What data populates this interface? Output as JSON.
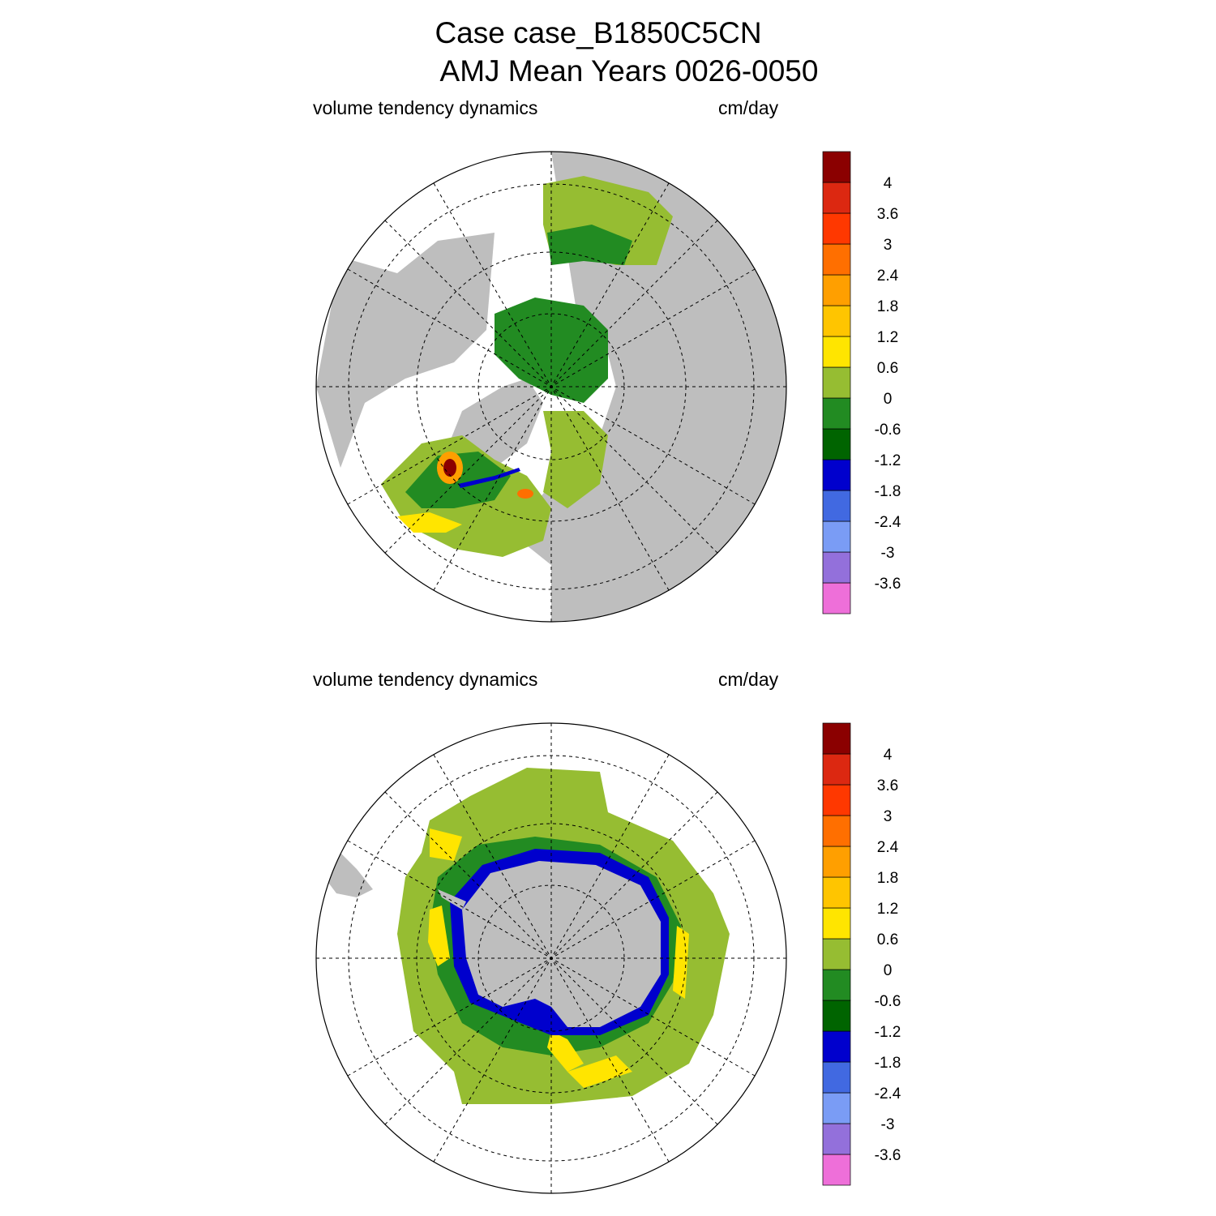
{
  "title": {
    "line1": "Case case_B1850C5CN",
    "line2": "AMJ Mean   Years 0026-0050"
  },
  "panels": [
    {
      "left_label": "volume tendency dynamics",
      "right_label": "cm/day",
      "hemisphere": "north"
    },
    {
      "left_label": "volume tendency dynamics",
      "right_label": "cm/day",
      "hemisphere": "south"
    }
  ],
  "colorbar": {
    "colors": [
      "#ee6fd9",
      "#9370db",
      "#7a9cf5",
      "#4169e1",
      "#0000cd",
      "#006400",
      "#228b22",
      "#96bd32",
      "#ffe500",
      "#ffc500",
      "#ff9f00",
      "#ff6f00",
      "#ff3800",
      "#dc2811",
      "#8b0000"
    ],
    "labels": [
      "-3.6",
      "-3",
      "-2.4",
      "-1.8",
      "-1.2",
      "-0.6",
      "0",
      "0.6",
      "1.2",
      "1.8",
      "2.4",
      "3",
      "3.6",
      "4"
    ]
  },
  "colors": {
    "land": "#bebebe",
    "coast": "#000000"
  }
}
